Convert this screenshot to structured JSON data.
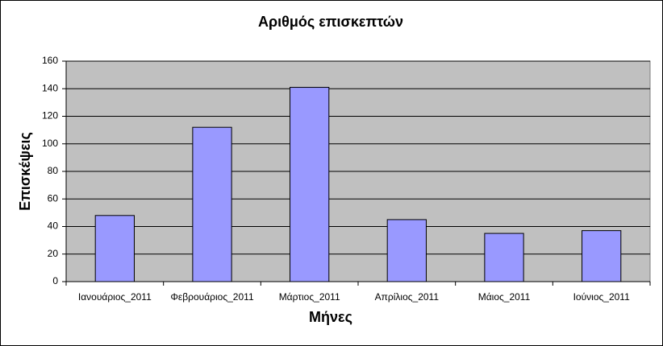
{
  "chart_data": {
    "type": "bar",
    "title": "Αριθμός επισκεπτών",
    "x_label": "Μήνες",
    "y_label": "Επισκέψεις",
    "categories": [
      "Ιανουάριος_2011",
      "Φεβρουάριος_2011",
      "Μάρτιος_2011",
      "Απρίλιος_2011",
      "Μάιος_2011",
      "Ιούνιος_2011"
    ],
    "values": [
      48,
      112,
      141,
      45,
      35,
      37
    ],
    "color": "#9999ff",
    "ylim": [
      0,
      160
    ],
    "yticks": [
      0,
      20,
      40,
      60,
      80,
      100,
      120,
      140,
      160
    ],
    "grid": true
  }
}
